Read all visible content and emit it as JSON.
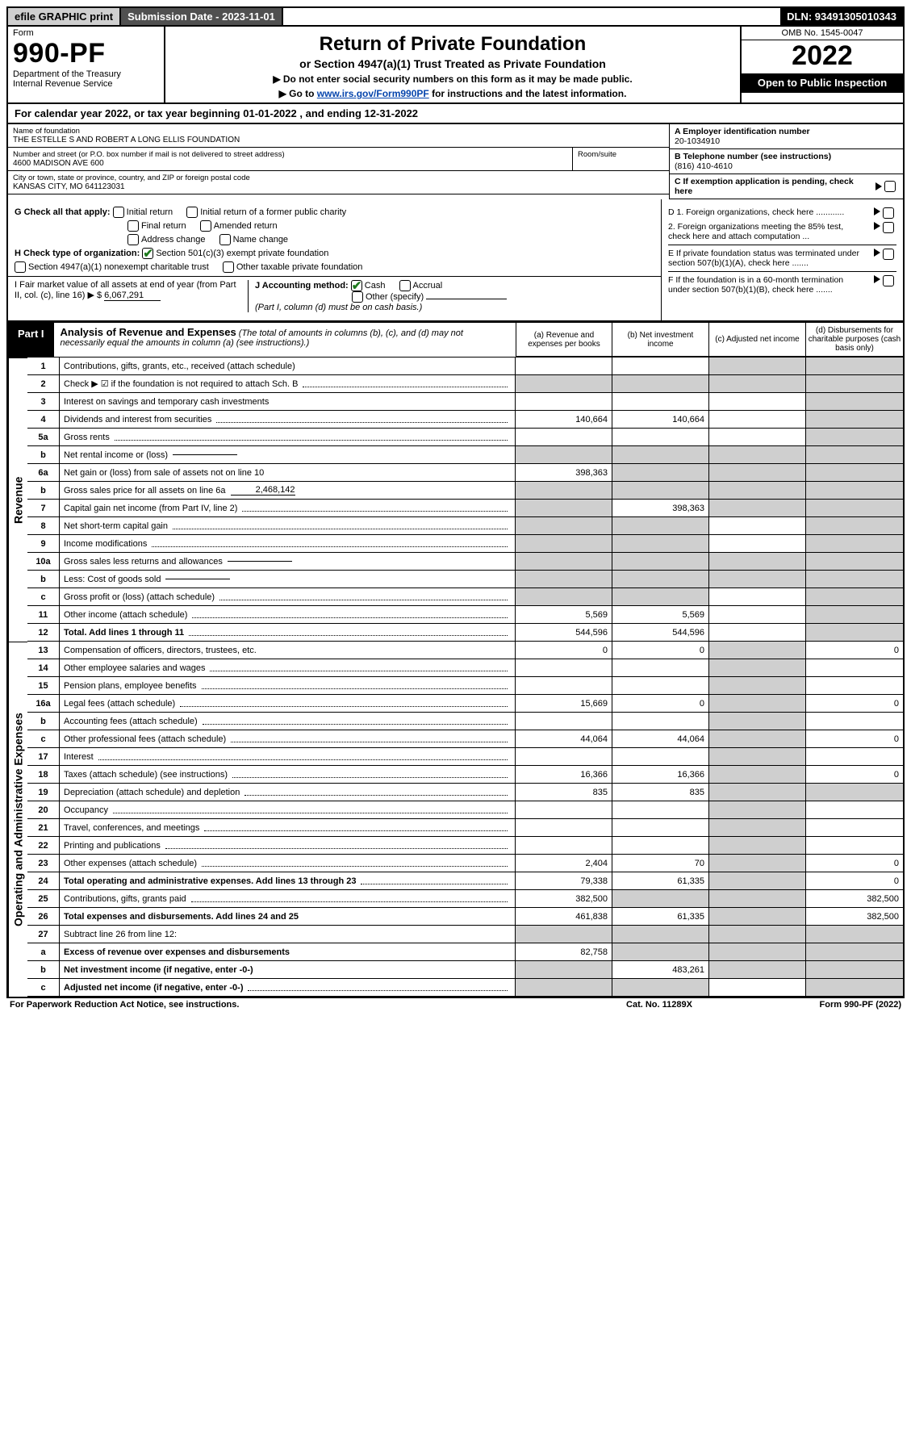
{
  "topbar": {
    "efile": "efile GRAPHIC print",
    "submission": "Submission Date - 2023-11-01",
    "dln": "DLN: 93491305010343"
  },
  "header": {
    "form_word": "Form",
    "form_num": "990-PF",
    "dept": "Department of the Treasury",
    "irs": "Internal Revenue Service",
    "title": "Return of Private Foundation",
    "subtitle1": "or Section 4947(a)(1) Trust Treated as Private Foundation",
    "subtitle2a": "▶ Do not enter social security numbers on this form as it may be made public.",
    "subtitle2b_pre": "▶ Go to ",
    "subtitle2b_link": "www.irs.gov/Form990PF",
    "subtitle2b_post": " for instructions and the latest information.",
    "omb": "OMB No. 1545-0047",
    "year": "2022",
    "open": "Open to Public Inspection"
  },
  "calyear": {
    "pre": "For calendar year 2022, or tax year beginning ",
    "begin": "01-01-2022",
    "mid": " , and ending ",
    "end": "12-31-2022"
  },
  "info": {
    "name_lbl": "Name of foundation",
    "name": "THE ESTELLE S AND ROBERT A LONG ELLIS FOUNDATION",
    "addr_lbl": "Number and street (or P.O. box number if mail is not delivered to street address)",
    "addr": "4600 MADISON AVE 600",
    "room_lbl": "Room/suite",
    "room": "",
    "city_lbl": "City or town, state or province, country, and ZIP or foreign postal code",
    "city": "KANSAS CITY, MO  641123031",
    "A_lbl": "A Employer identification number",
    "A_val": "20-1034910",
    "B_lbl": "B Telephone number (see instructions)",
    "B_val": "(816) 410-4610",
    "C_lbl": "C If exemption application is pending, check here"
  },
  "G": {
    "label": "G Check all that apply:",
    "opts": [
      "Initial return",
      "Initial return of a former public charity",
      "Final return",
      "Amended return",
      "Address change",
      "Name change"
    ]
  },
  "H": {
    "label": "H Check type of organization:",
    "o1": "Section 501(c)(3) exempt private foundation",
    "o2": "Section 4947(a)(1) nonexempt charitable trust",
    "o3": "Other taxable private foundation"
  },
  "I": {
    "label": "I Fair market value of all assets at end of year (from Part II, col. (c), line 16) ▶ $",
    "val": "6,067,291"
  },
  "J": {
    "label": "J Accounting method:",
    "o1": "Cash",
    "o2": "Accrual",
    "o3": "Other (specify)",
    "note": "(Part I, column (d) must be on cash basis.)"
  },
  "right": {
    "D1": "D 1. Foreign organizations, check here ............",
    "D2": "2. Foreign organizations meeting the 85% test, check here and attach computation ...",
    "E": "E If private foundation status was terminated under section 507(b)(1)(A), check here .......",
    "F": "F If the foundation is in a 60-month termination under section 507(b)(1)(B), check here .......",
    "C": "C If exemption application is pending, check here"
  },
  "part1": {
    "tab": "Part I",
    "title": "Analysis of Revenue and Expenses",
    "title_note": " (The total of amounts in columns (b), (c), and (d) may not necessarily equal the amounts in column (a) (see instructions).)",
    "col_a": "(a) Revenue and expenses per books",
    "col_b": "(b) Net investment income",
    "col_c": "(c) Adjusted net income",
    "col_d": "(d) Disbursements for charitable purposes (cash basis only)"
  },
  "side": {
    "rev": "Revenue",
    "exp": "Operating and Administrative Expenses"
  },
  "rows": [
    {
      "n": "1",
      "d": "Contributions, gifts, grants, etc., received (attach schedule)",
      "a": "",
      "b": "",
      "c": "s",
      "dd": "s"
    },
    {
      "n": "2",
      "d": "Check ▶ ☑ if the foundation is not required to attach Sch. B",
      "a": "s",
      "b": "s",
      "c": "s",
      "dd": "s",
      "dots": true
    },
    {
      "n": "3",
      "d": "Interest on savings and temporary cash investments",
      "a": "",
      "b": "",
      "c": "",
      "dd": "s"
    },
    {
      "n": "4",
      "d": "Dividends and interest from securities",
      "a": "140,664",
      "b": "140,664",
      "c": "",
      "dd": "s",
      "dots": true
    },
    {
      "n": "5a",
      "d": "Gross rents",
      "a": "",
      "b": "",
      "c": "",
      "dd": "s",
      "dots": true
    },
    {
      "n": "b",
      "d": "Net rental income or (loss)",
      "a": "s",
      "b": "s",
      "c": "s",
      "dd": "s",
      "inline": ""
    },
    {
      "n": "6a",
      "d": "Net gain or (loss) from sale of assets not on line 10",
      "a": "398,363",
      "b": "s",
      "c": "s",
      "dd": "s"
    },
    {
      "n": "b",
      "d": "Gross sales price for all assets on line 6a",
      "a": "s",
      "b": "s",
      "c": "s",
      "dd": "s",
      "inline": "2,468,142"
    },
    {
      "n": "7",
      "d": "Capital gain net income (from Part IV, line 2)",
      "a": "s",
      "b": "398,363",
      "c": "s",
      "dd": "s",
      "dots": true
    },
    {
      "n": "8",
      "d": "Net short-term capital gain",
      "a": "s",
      "b": "s",
      "c": "",
      "dd": "s",
      "dots": true
    },
    {
      "n": "9",
      "d": "Income modifications",
      "a": "s",
      "b": "s",
      "c": "",
      "dd": "s",
      "dots": true
    },
    {
      "n": "10a",
      "d": "Gross sales less returns and allowances",
      "a": "s",
      "b": "s",
      "c": "s",
      "dd": "s",
      "inline": ""
    },
    {
      "n": "b",
      "d": "Less: Cost of goods sold",
      "a": "s",
      "b": "s",
      "c": "s",
      "dd": "s",
      "inline": "",
      "dots": true
    },
    {
      "n": "c",
      "d": "Gross profit or (loss) (attach schedule)",
      "a": "s",
      "b": "s",
      "c": "",
      "dd": "s",
      "dots": true
    },
    {
      "n": "11",
      "d": "Other income (attach schedule)",
      "a": "5,569",
      "b": "5,569",
      "c": "",
      "dd": "s",
      "dots": true
    },
    {
      "n": "12",
      "d": "Total. Add lines 1 through 11",
      "a": "544,596",
      "b": "544,596",
      "c": "",
      "dd": "s",
      "bold": true,
      "dots": true
    },
    {
      "n": "13",
      "d": "Compensation of officers, directors, trustees, etc.",
      "a": "0",
      "b": "0",
      "c": "s",
      "dd": "0"
    },
    {
      "n": "14",
      "d": "Other employee salaries and wages",
      "a": "",
      "b": "",
      "c": "s",
      "dd": "",
      "dots": true
    },
    {
      "n": "15",
      "d": "Pension plans, employee benefits",
      "a": "",
      "b": "",
      "c": "s",
      "dd": "",
      "dots": true
    },
    {
      "n": "16a",
      "d": "Legal fees (attach schedule)",
      "a": "15,669",
      "b": "0",
      "c": "s",
      "dd": "0",
      "dots": true
    },
    {
      "n": "b",
      "d": "Accounting fees (attach schedule)",
      "a": "",
      "b": "",
      "c": "s",
      "dd": "",
      "dots": true
    },
    {
      "n": "c",
      "d": "Other professional fees (attach schedule)",
      "a": "44,064",
      "b": "44,064",
      "c": "s",
      "dd": "0",
      "dots": true
    },
    {
      "n": "17",
      "d": "Interest",
      "a": "",
      "b": "",
      "c": "s",
      "dd": "",
      "dots": true
    },
    {
      "n": "18",
      "d": "Taxes (attach schedule) (see instructions)",
      "a": "16,366",
      "b": "16,366",
      "c": "s",
      "dd": "0",
      "dots": true
    },
    {
      "n": "19",
      "d": "Depreciation (attach schedule) and depletion",
      "a": "835",
      "b": "835",
      "c": "s",
      "dd": "s",
      "dots": true
    },
    {
      "n": "20",
      "d": "Occupancy",
      "a": "",
      "b": "",
      "c": "s",
      "dd": "",
      "dots": true
    },
    {
      "n": "21",
      "d": "Travel, conferences, and meetings",
      "a": "",
      "b": "",
      "c": "s",
      "dd": "",
      "dots": true
    },
    {
      "n": "22",
      "d": "Printing and publications",
      "a": "",
      "b": "",
      "c": "s",
      "dd": "",
      "dots": true
    },
    {
      "n": "23",
      "d": "Other expenses (attach schedule)",
      "a": "2,404",
      "b": "70",
      "c": "s",
      "dd": "0",
      "dots": true
    },
    {
      "n": "24",
      "d": "Total operating and administrative expenses. Add lines 13 through 23",
      "a": "79,338",
      "b": "61,335",
      "c": "s",
      "dd": "0",
      "bold": true,
      "dots": true
    },
    {
      "n": "25",
      "d": "Contributions, gifts, grants paid",
      "a": "382,500",
      "b": "s",
      "c": "s",
      "dd": "382,500",
      "dots": true
    },
    {
      "n": "26",
      "d": "Total expenses and disbursements. Add lines 24 and 25",
      "a": "461,838",
      "b": "61,335",
      "c": "s",
      "dd": "382,500",
      "bold": true
    },
    {
      "n": "27",
      "d": "Subtract line 26 from line 12:",
      "a": "s",
      "b": "s",
      "c": "s",
      "dd": "s"
    },
    {
      "n": "a",
      "d": "Excess of revenue over expenses and disbursements",
      "a": "82,758",
      "b": "s",
      "c": "s",
      "dd": "s",
      "bold": true
    },
    {
      "n": "b",
      "d": "Net investment income (if negative, enter -0-)",
      "a": "s",
      "b": "483,261",
      "c": "s",
      "dd": "s",
      "bold": true
    },
    {
      "n": "c",
      "d": "Adjusted net income (if negative, enter -0-)",
      "a": "s",
      "b": "s",
      "c": "",
      "dd": "s",
      "bold": true,
      "dots": true
    }
  ],
  "footer": {
    "left": "For Paperwork Reduction Act Notice, see instructions.",
    "mid": "Cat. No. 11289X",
    "right": "Form 990-PF (2022)"
  }
}
